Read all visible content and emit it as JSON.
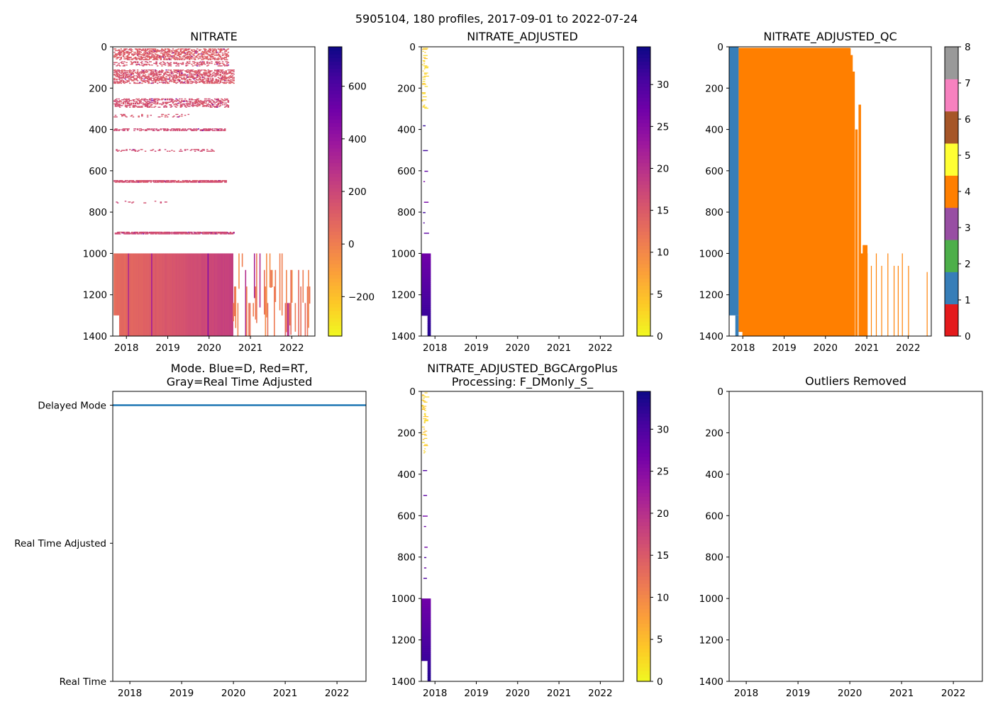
{
  "figure_title": "5905104, 180 profiles, 2017-09-01 to 2022-07-24",
  "colors": {
    "plasma": [
      "#f0f921",
      "#fdca26",
      "#fb9f3a",
      "#ed7953",
      "#d8576b",
      "#bd3786",
      "#9c179e",
      "#7201a8",
      "#46039f",
      "#0d0887"
    ],
    "qc": [
      "#e41a1c",
      "#377eb8",
      "#4daf4a",
      "#984ea3",
      "#ff7f00",
      "#ffff33",
      "#a65628",
      "#f781bf",
      "#999999"
    ],
    "mode_line": "#1f77b4"
  },
  "chart_data": [
    {
      "id": "nitrate",
      "type": "heatmap",
      "title": "NITRATE",
      "xlabel": "",
      "ylabel": "",
      "xlim": [
        2017.67,
        2022.56
      ],
      "ylim": [
        1400,
        0
      ],
      "xticks": [
        "2018",
        "2019",
        "2020",
        "2021",
        "2022"
      ],
      "yticks": [
        "0",
        "200",
        "400",
        "600",
        "800",
        "1000",
        "1200",
        "1400"
      ],
      "colorbar": {
        "min": -350,
        "max": 750,
        "ticks": [
          "−200",
          "0",
          "200",
          "400",
          "600"
        ],
        "tick_values": [
          -200,
          0,
          200,
          400,
          600
        ]
      },
      "bands": [
        {
          "depth": [
            8,
            60
          ],
          "x_end": 2020.45,
          "value": 120,
          "density": 0.45
        },
        {
          "depth": [
            70,
            90
          ],
          "x_end": 2020.45,
          "value": 150,
          "density": 0.3
        },
        {
          "depth": [
            110,
            175
          ],
          "x_end": 2020.6,
          "value": 140,
          "density": 0.45
        },
        {
          "depth": [
            250,
            290
          ],
          "x_end": 2020.45,
          "value": 160,
          "density": 0.4
        },
        {
          "depth": [
            325,
            340
          ],
          "x_end": 2019.5,
          "value": 150,
          "density": 0.2
        },
        {
          "depth": [
            395,
            405
          ],
          "x_end": 2020.4,
          "value": 180,
          "density": 0.5
        },
        {
          "depth": [
            495,
            505
          ],
          "x_end": 2020.1,
          "value": 170,
          "density": 0.2
        },
        {
          "depth": [
            645,
            655
          ],
          "x_end": 2020.4,
          "value": 160,
          "density": 0.8
        },
        {
          "depth": [
            745,
            755
          ],
          "x_end": 2019.0,
          "value": 170,
          "density": 0.15
        },
        {
          "depth": [
            895,
            905
          ],
          "x_end": 2020.6,
          "value": 180,
          "density": 0.85
        }
      ],
      "deep_block": {
        "depth": [
          1000,
          1400
        ],
        "x_start": 2017.67,
        "x_end": 2020.55,
        "value_start": 60,
        "value_end": 230
      },
      "sparse_deep": {
        "x_start": 2020.55,
        "x_end": 2022.5,
        "value": 20
      }
    },
    {
      "id": "nitrate_adjusted",
      "type": "heatmap",
      "title": "NITRATE_ADJUSTED",
      "xlim": [
        2017.67,
        2022.56
      ],
      "ylim": [
        1400,
        0
      ],
      "xticks": [
        "2018",
        "2019",
        "2020",
        "2021",
        "2022"
      ],
      "yticks": [
        "0",
        "200",
        "400",
        "600",
        "800",
        "1000",
        "1200",
        "1400"
      ],
      "colorbar": {
        "min": 0,
        "max": 34.5,
        "ticks": [
          "0",
          "5",
          "10",
          "15",
          "20",
          "25",
          "30"
        ],
        "tick_values": [
          0,
          5,
          10,
          15,
          20,
          25,
          30
        ]
      },
      "shallow": {
        "depth": [
          0,
          300
        ],
        "x_start": 2017.67,
        "x_end": 2017.9,
        "value": 2
      },
      "deep_block": {
        "depth": [
          1000,
          1400
        ],
        "x_start": 2017.67,
        "x_end": 2017.9,
        "value_start": 27,
        "value_end": 33
      }
    },
    {
      "id": "nitrate_adjusted_qc",
      "type": "heatmap",
      "title": "NITRATE_ADJUSTED_QC",
      "xlim": [
        2017.67,
        2022.56
      ],
      "ylim": [
        1400,
        0
      ],
      "xticks": [
        "2018",
        "2019",
        "2020",
        "2021",
        "2022"
      ],
      "yticks": [
        "0",
        "200",
        "400",
        "600",
        "800",
        "1000",
        "1200",
        "1400"
      ],
      "colorbar": {
        "min": 0,
        "max": 8,
        "ticks": [
          "0",
          "1",
          "2",
          "3",
          "4",
          "5",
          "6",
          "7",
          "8"
        ],
        "tick_values": [
          0,
          1,
          2,
          3,
          4,
          5,
          6,
          7,
          8
        ]
      },
      "qc1_block": {
        "x": [
          2017.67,
          2017.9
        ],
        "depth": [
          0,
          1400
        ],
        "flag": 1
      },
      "qc4_block": {
        "x": [
          2017.9,
          2020.6
        ],
        "depth": [
          5,
          1400
        ],
        "flag": 4
      },
      "qc4_columns": [
        {
          "x": 2020.55,
          "top": 8
        },
        {
          "x": 2020.6,
          "top": 40
        },
        {
          "x": 2020.65,
          "top": 120
        },
        {
          "x": 2020.72,
          "top": 400
        },
        {
          "x": 2020.8,
          "top": 280
        },
        {
          "x": 2020.85,
          "top": 1000
        },
        {
          "x": 2020.92,
          "top": 960
        },
        {
          "x": 2021.0,
          "top": 1000
        },
        {
          "x": 2021.1,
          "top": 1060
        },
        {
          "x": 2021.22,
          "top": 1000
        },
        {
          "x": 2021.35,
          "top": 1060
        },
        {
          "x": 2021.5,
          "top": 1000
        },
        {
          "x": 2021.65,
          "top": 1060
        },
        {
          "x": 2021.75,
          "top": 1060
        },
        {
          "x": 2021.85,
          "top": 1000
        },
        {
          "x": 2022.0,
          "top": 1060
        },
        {
          "x": 2022.45,
          "top": 1090
        }
      ]
    },
    {
      "id": "mode",
      "type": "line",
      "title_lines": [
        "Mode. Blue=D, Red=RT,",
        "Gray=Real Time Adjusted"
      ],
      "xlim": [
        2017.67,
        2022.56
      ],
      "ylim": [
        0,
        2.1
      ],
      "xticks": [
        "2018",
        "2019",
        "2020",
        "2021",
        "2022"
      ],
      "ycategories": [
        "Real Time",
        "Real Time Adjusted",
        "Delayed Mode"
      ],
      "series": [
        {
          "name": "Delayed Mode",
          "x": [
            2017.67,
            2022.56
          ],
          "y": [
            2,
            2
          ]
        }
      ]
    },
    {
      "id": "bgcargoplus",
      "type": "heatmap",
      "title_lines": [
        "NITRATE_ADJUSTED_BGCArgoPlus",
        "Processing: F_DMonly_S_"
      ],
      "xlim": [
        2017.67,
        2022.56
      ],
      "ylim": [
        1400,
        0
      ],
      "xticks": [
        "2018",
        "2019",
        "2020",
        "2021",
        "2022"
      ],
      "yticks": [
        "0",
        "200",
        "400",
        "600",
        "800",
        "1000",
        "1200",
        "1400"
      ],
      "colorbar": {
        "min": 0,
        "max": 34.5,
        "ticks": [
          "0",
          "5",
          "10",
          "15",
          "20",
          "25",
          "30"
        ],
        "tick_values": [
          0,
          5,
          10,
          15,
          20,
          25,
          30
        ]
      },
      "shallow": {
        "depth": [
          0,
          300
        ],
        "x_start": 2017.67,
        "x_end": 2017.9,
        "value": 2
      },
      "deep_block": {
        "depth": [
          1000,
          1400
        ],
        "x_start": 2017.67,
        "x_end": 2017.9,
        "value_start": 27,
        "value_end": 33
      }
    },
    {
      "id": "outliers",
      "type": "scatter",
      "title": "Outliers Removed",
      "xlim": [
        2017.67,
        2022.56
      ],
      "ylim": [
        1400,
        0
      ],
      "xticks": [
        "2018",
        "2019",
        "2020",
        "2021",
        "2022"
      ],
      "yticks": [
        "0",
        "200",
        "400",
        "600",
        "800",
        "1000",
        "1200",
        "1400"
      ],
      "points": []
    }
  ]
}
